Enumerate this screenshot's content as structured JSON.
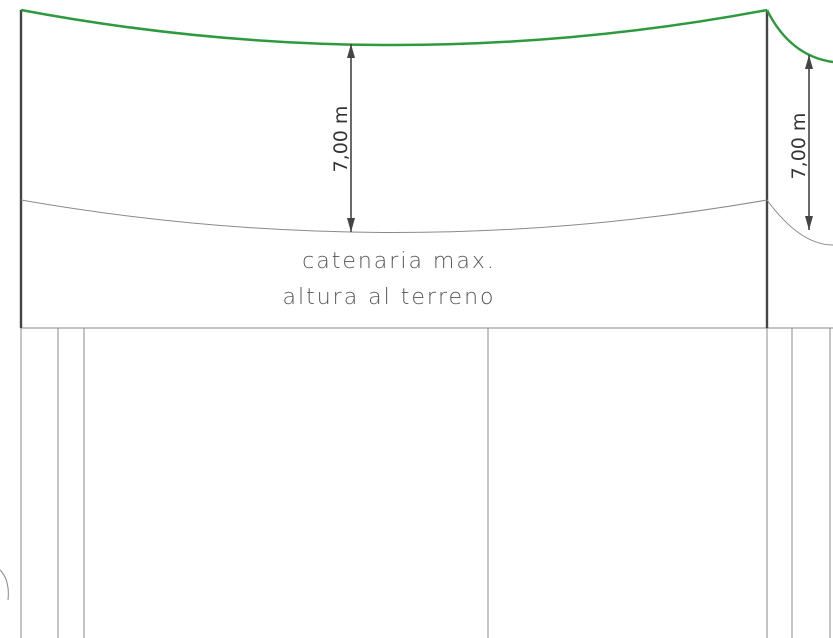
{
  "colors": {
    "background": "#ffffff",
    "conductor": "#2e9a3e",
    "catenary_thin": "#8a8a8a",
    "pole": "#444444",
    "dimension": "#444444",
    "text": "#555555",
    "ground_lines": "#888888"
  },
  "dimensions": {
    "left_clearance": "7,00 m",
    "right_clearance": "7,00 m"
  },
  "labels": {
    "catenary_line1": "catenaria max.",
    "catenary_line2": "altura al terreno"
  }
}
